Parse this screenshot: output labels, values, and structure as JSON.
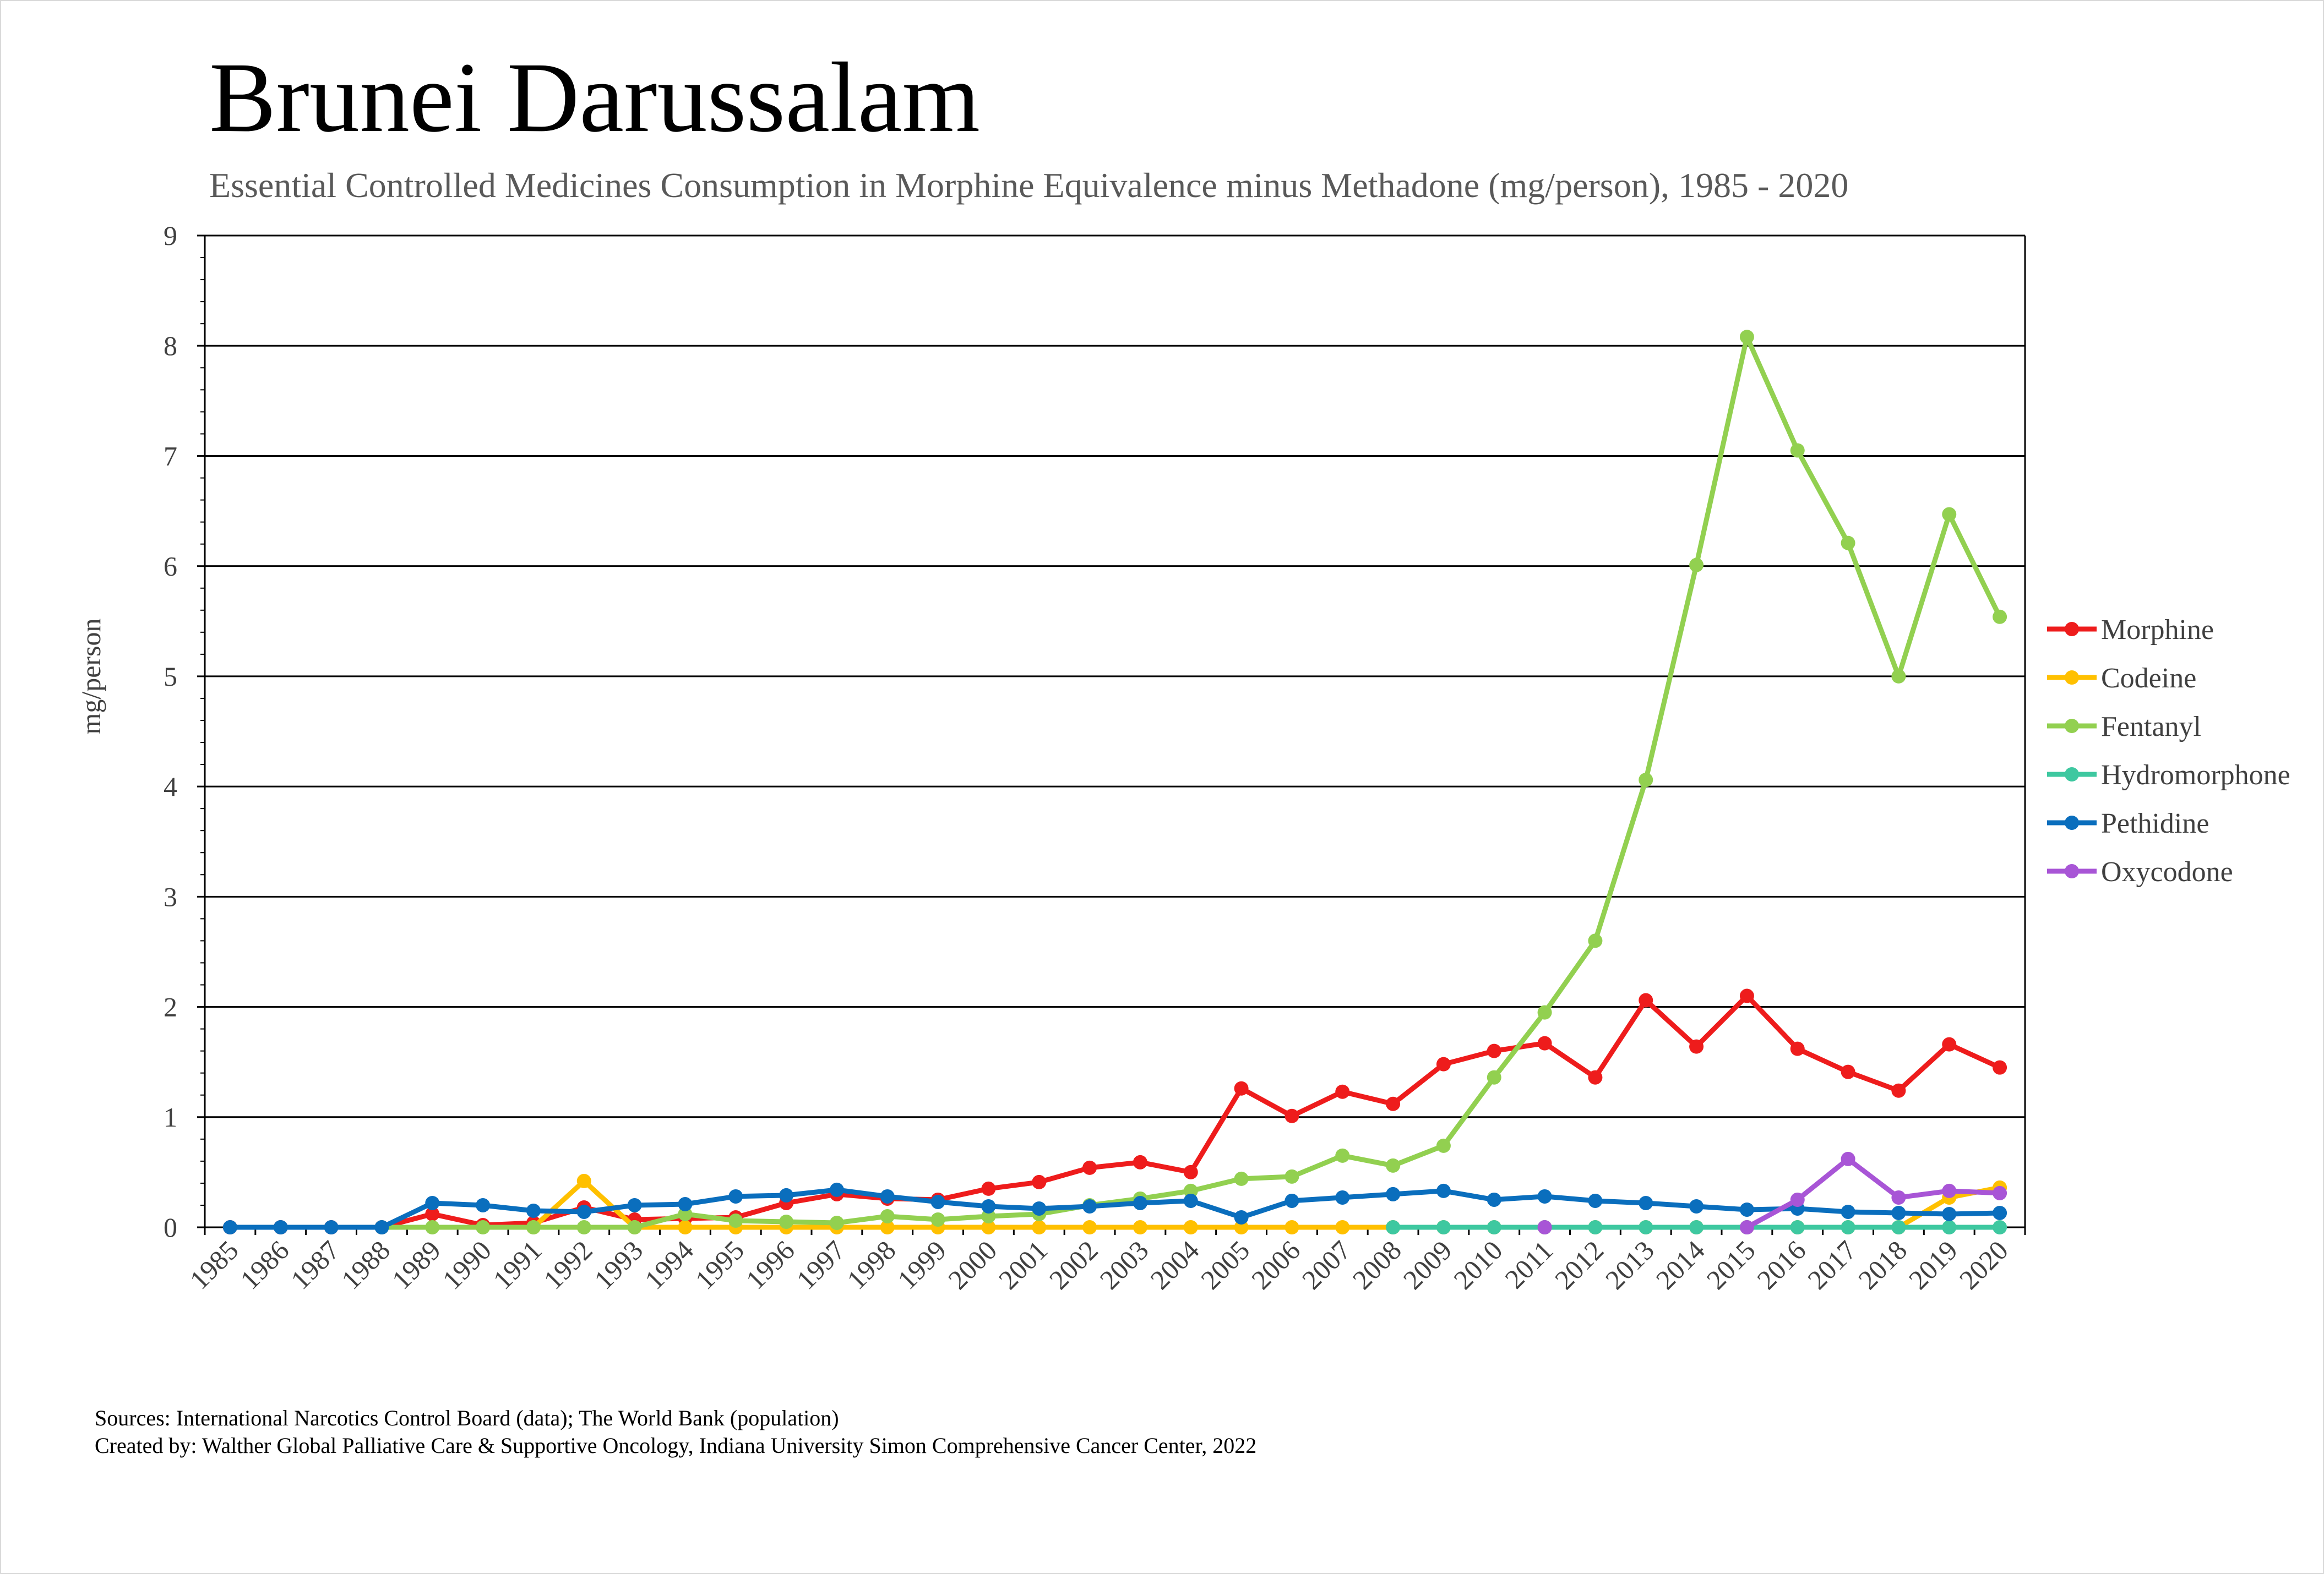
{
  "chart_data": {
    "type": "line",
    "title": "Brunei Darussalam",
    "subtitle": "Essential Controlled Medicines Consumption in Morphine Equivalence minus Methadone (mg/person), 1985 - 2020",
    "xlabel": "",
    "ylabel": "mg/person",
    "ylim": [
      0,
      9
    ],
    "yticks": [
      "0",
      "1",
      "2",
      "3",
      "4",
      "5",
      "6",
      "7",
      "8",
      "9"
    ],
    "grid": true,
    "legend_position": "right",
    "categories": [
      "1985",
      "1986",
      "1987",
      "1988",
      "1989",
      "1990",
      "1991",
      "1992",
      "1993",
      "1994",
      "1995",
      "1996",
      "1997",
      "1998",
      "1999",
      "2000",
      "2001",
      "2002",
      "2003",
      "2004",
      "2005",
      "2006",
      "2007",
      "2008",
      "2009",
      "2010",
      "2011",
      "2012",
      "2013",
      "2014",
      "2015",
      "2016",
      "2017",
      "2018",
      "2019",
      "2020"
    ],
    "series": [
      {
        "name": "Morphine",
        "color": "#ee1c1c",
        "values": [
          0,
          0,
          0,
          0,
          0.12,
          0.02,
          0.04,
          0.18,
          0.07,
          0.08,
          0.09,
          0.22,
          0.3,
          0.26,
          0.25,
          0.35,
          0.41,
          0.54,
          0.59,
          0.5,
          1.26,
          1.01,
          1.23,
          1.12,
          1.48,
          1.6,
          1.67,
          1.36,
          2.06,
          1.64,
          2.1,
          1.62,
          1.41,
          1.24,
          1.66,
          1.45
        ]
      },
      {
        "name": "Codeine",
        "color": "#ffc000",
        "values": [
          null,
          null,
          null,
          null,
          null,
          null,
          0,
          0.42,
          0,
          0,
          0,
          0,
          0,
          0,
          0,
          0,
          0,
          0,
          0,
          0,
          0,
          0,
          0,
          0,
          0,
          0,
          0,
          0,
          0,
          0,
          0,
          0,
          0,
          0,
          0.27,
          0.36
        ]
      },
      {
        "name": "Fentanyl",
        "color": "#92d050",
        "values": [
          null,
          null,
          null,
          0,
          0,
          0,
          0,
          0,
          0,
          0.12,
          0.06,
          0.05,
          0.04,
          0.1,
          0.07,
          0.1,
          0.12,
          0.2,
          0.26,
          0.33,
          0.44,
          0.46,
          0.65,
          0.56,
          0.74,
          1.36,
          1.95,
          2.6,
          4.06,
          6.01,
          8.08,
          7.05,
          6.21,
          5.0,
          6.47,
          5.54
        ]
      },
      {
        "name": "Hydromorphone",
        "color": "#3ec8a0",
        "values": [
          null,
          null,
          null,
          null,
          null,
          null,
          null,
          null,
          null,
          null,
          null,
          null,
          null,
          null,
          null,
          null,
          null,
          null,
          null,
          null,
          null,
          null,
          null,
          0,
          0,
          0,
          0,
          0,
          0,
          0,
          0,
          0,
          0,
          0,
          0,
          0
        ]
      },
      {
        "name": "Pethidine",
        "color": "#0a6ebd",
        "values": [
          0,
          0,
          0,
          0,
          0.22,
          0.2,
          0.15,
          0.14,
          0.2,
          0.21,
          0.28,
          0.29,
          0.34,
          0.28,
          0.23,
          0.19,
          0.17,
          0.19,
          0.22,
          0.24,
          0.09,
          0.24,
          0.27,
          0.3,
          0.33,
          0.25,
          0.28,
          0.24,
          0.22,
          0.19,
          0.16,
          0.17,
          0.14,
          0.13,
          0.12,
          0.13
        ]
      },
      {
        "name": "Oxycodone",
        "color": "#a855d6",
        "values": [
          null,
          null,
          null,
          null,
          null,
          null,
          null,
          null,
          null,
          null,
          null,
          null,
          null,
          null,
          null,
          null,
          null,
          null,
          null,
          null,
          null,
          null,
          null,
          null,
          null,
          null,
          0,
          null,
          null,
          null,
          0,
          0.25,
          0.62,
          0.27,
          0.33,
          0.31
        ]
      }
    ]
  },
  "footer": {
    "line1": "Sources: International Narcotics Control Board (data); The World Bank (population)",
    "line2": "Created by: Walther Global Palliative Care & Supportive Oncology, Indiana University Simon Comprehensive Cancer Center, 2022"
  }
}
